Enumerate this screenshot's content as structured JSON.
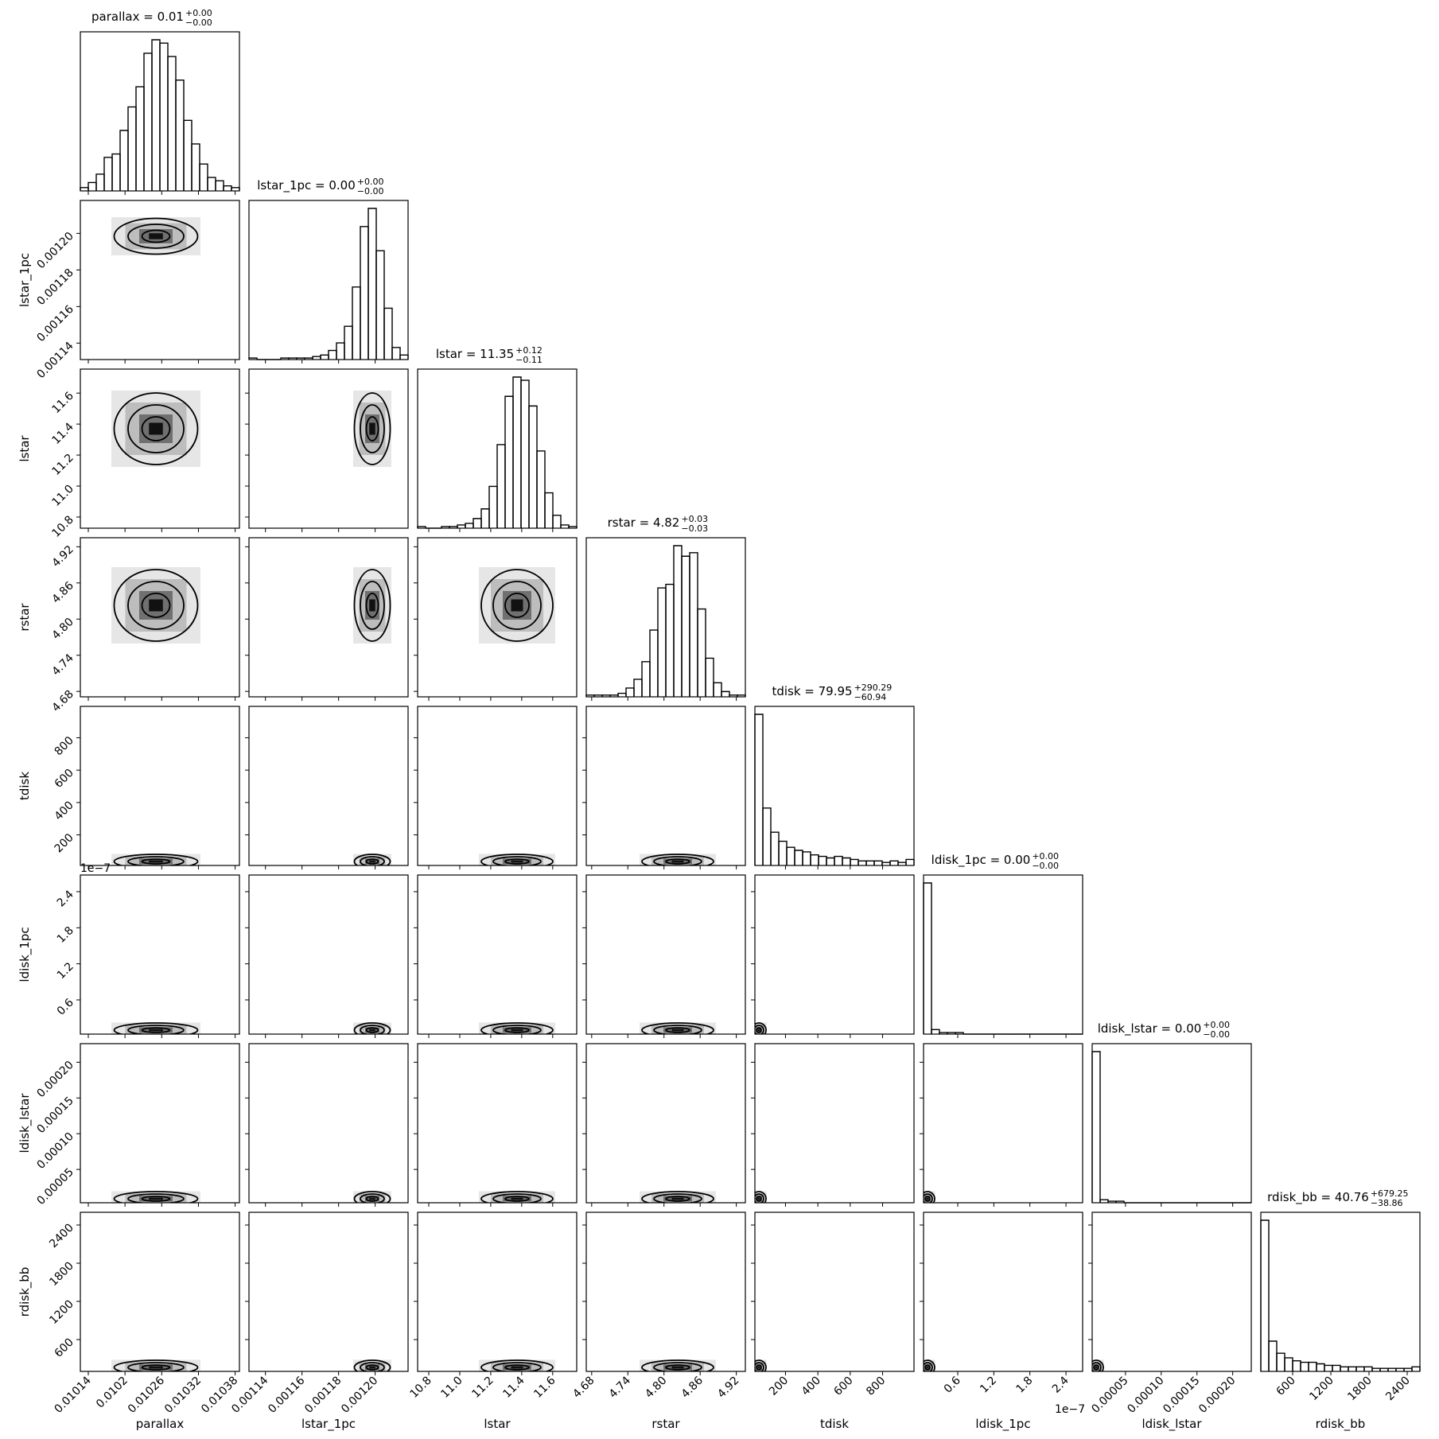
{
  "chart_data": {
    "type": "corner",
    "variables": [
      {
        "name": "parallax",
        "title": "parallax = 0.01",
        "title_upper": "+0.00",
        "title_lower": "−0.00",
        "lim": [
          0.010127,
          0.010387
        ],
        "ticks": [
          0.01014,
          0.0102,
          0.01026,
          0.01032,
          0.01038
        ],
        "counts": [
          2,
          5,
          10,
          20,
          22,
          36,
          50,
          62,
          82,
          90,
          88,
          80,
          66,
          42,
          28,
          16,
          8,
          6,
          3,
          2
        ]
      },
      {
        "name": "lstar_1pc",
        "title": "lstar_1pc = 0.00",
        "title_upper": "+0.00",
        "title_lower": "−0.00",
        "lim": [
          0.001131,
          0.001218
        ],
        "ticks": [
          {
            "value": 0.00114,
            "label": "0.00114"
          },
          {
            "value": 0.00116,
            "label": "0.00116"
          },
          {
            "value": 0.00118,
            "label": "0.00118"
          },
          {
            "value": 0.0012,
            "label": "0.00120"
          }
        ],
        "counts": [
          1,
          0,
          0,
          0,
          1,
          1,
          1,
          1,
          2,
          3,
          6,
          11,
          22,
          48,
          88,
          100,
          72,
          34,
          8,
          3
        ]
      },
      {
        "name": "lstar",
        "title": "lstar = 11.35",
        "title_upper": "+0.12",
        "title_lower": "−0.11",
        "lim": [
          10.728,
          11.755
        ],
        "ticks": [
          10.8,
          {
            "value": 11,
            "label": "11.0"
          },
          11.2,
          11.4,
          11.6
        ],
        "counts": [
          1,
          0,
          0,
          1,
          1,
          2,
          3,
          6,
          12,
          26,
          52,
          82,
          94,
          92,
          76,
          48,
          22,
          8,
          2,
          1
        ]
      },
      {
        "name": "rstar",
        "title": "rstar = 4.82",
        "title_upper": "+0.03",
        "title_lower": "−0.03",
        "lim": [
          4.671,
          4.935
        ],
        "ticks": [
          4.68,
          4.74,
          {
            "value": 4.8,
            "label": "4.80"
          },
          4.86,
          4.92
        ],
        "counts": [
          1,
          1,
          1,
          1,
          2,
          5,
          10,
          20,
          38,
          62,
          64,
          86,
          80,
          82,
          50,
          22,
          8,
          3,
          1,
          1
        ]
      },
      {
        "name": "tdisk",
        "title": "tdisk = 79.95",
        "title_upper": "+290.29",
        "title_lower": "−60.94",
        "lim": [
          11,
          994
        ],
        "ticks": [
          200,
          400,
          600,
          800
        ],
        "counts": [
          100,
          38,
          22,
          16,
          12,
          10,
          9,
          7,
          6,
          5,
          6,
          5,
          4,
          3,
          3,
          3,
          2,
          3,
          2,
          4
        ]
      },
      {
        "name": "ldisk_1pc",
        "title": "ldisk_1pc = 0.00",
        "title_upper": "+0.00",
        "title_lower": "−0.00",
        "lim": [
          0.031,
          2.677
        ],
        "ticks": [
          0.6,
          1.2,
          1.8,
          2.4
        ],
        "offset_label": "1e−7",
        "counts": [
          100,
          3,
          1,
          1,
          1,
          0,
          0,
          0,
          0,
          0,
          0,
          0,
          0,
          0,
          0,
          0,
          0,
          0,
          0,
          0
        ]
      },
      {
        "name": "ldisk_lstar",
        "title": "ldisk_lstar = 0.00",
        "title_upper": "+0.00",
        "title_lower": "−0.00",
        "lim": [
          3.4e-06,
          0.000226
        ],
        "ticks": [
          5e-05,
          {
            "value": 0.0001,
            "label": "0.00010"
          },
          0.00015,
          {
            "value": 0.0002,
            "label": "0.00020"
          }
        ],
        "counts": [
          100,
          2,
          1,
          1,
          0,
          0,
          0,
          0,
          0,
          0,
          0,
          0,
          0,
          0,
          0,
          0,
          0,
          0,
          0,
          0
        ]
      },
      {
        "name": "rdisk_bb",
        "title": "rdisk_bb = 40.76",
        "title_upper": "+679.25",
        "title_lower": "−38.86",
        "lim": [
          100,
          2600
        ],
        "ticks": [
          600,
          1200,
          1800,
          2400
        ],
        "counts": [
          100,
          20,
          12,
          9,
          7,
          6,
          6,
          5,
          4,
          4,
          3,
          3,
          3,
          3,
          2,
          2,
          2,
          2,
          2,
          3
        ]
      }
    ]
  }
}
